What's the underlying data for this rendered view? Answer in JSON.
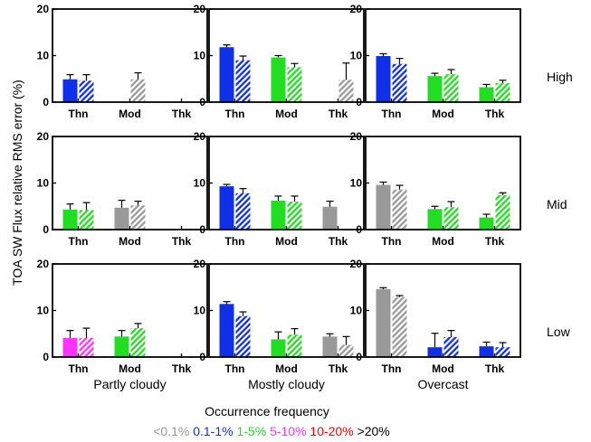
{
  "chart_data": {
    "type": "bar",
    "ylabel": "TOA SW Flux relative RMS error (%)",
    "ylim": [
      0,
      20
    ],
    "yticks": [
      0,
      10,
      20
    ],
    "categories": [
      "Thn",
      "Mod",
      "Thk"
    ],
    "row_labels": [
      "High",
      "Mid",
      "Low"
    ],
    "column_labels": [
      "Partly cloudy",
      "Mostly cloudy",
      "Overcast"
    ],
    "legend": {
      "title": "Occurrence frequency",
      "items": [
        {
          "label": "<0.1%",
          "color": "#999999"
        },
        {
          "label": "0.1-1%",
          "color": "#1030e8"
        },
        {
          "label": "1-5%",
          "color": "#22dd22"
        },
        {
          "label": "5-10%",
          "color": "#ff33ff"
        },
        {
          "label": "10-20%",
          "color": "#ff0000"
        },
        {
          "label": ">20%",
          "color": "#000000"
        }
      ]
    },
    "series_style": [
      "solid",
      "hatched"
    ],
    "panels": [
      {
        "row": "High",
        "column": "Partly cloudy",
        "bars": [
          {
            "category": "Thn",
            "values": [
              4.9,
              4.6
            ],
            "errors": [
              1.0,
              1.3
            ],
            "color": "#1030e8"
          },
          {
            "category": "Mod",
            "values": [
              0,
              4.9
            ],
            "errors": [
              0,
              1.4
            ],
            "color": "#999999"
          },
          {
            "category": "Thk",
            "values": [
              0,
              0
            ],
            "errors": [
              0,
              0
            ],
            "color": "#999999"
          }
        ]
      },
      {
        "row": "High",
        "column": "Mostly cloudy",
        "bars": [
          {
            "category": "Thn",
            "values": [
              11.8,
              9.0
            ],
            "errors": [
              0.5,
              0.9
            ],
            "color": "#1030e8"
          },
          {
            "category": "Mod",
            "values": [
              9.6,
              7.5
            ],
            "errors": [
              0.4,
              0.8
            ],
            "color": "#22dd22"
          },
          {
            "category": "Thk",
            "values": [
              0,
              4.8
            ],
            "errors": [
              0,
              3.6
            ],
            "color": "#999999"
          }
        ]
      },
      {
        "row": "High",
        "column": "Overcast",
        "bars": [
          {
            "category": "Thn",
            "values": [
              9.9,
              8.2
            ],
            "errors": [
              0.5,
              1.2
            ],
            "color": "#1030e8"
          },
          {
            "category": "Mod",
            "values": [
              5.6,
              6.0
            ],
            "errors": [
              0.6,
              1.0
            ],
            "color": "#22dd22"
          },
          {
            "category": "Thk",
            "values": [
              3.2,
              4.1
            ],
            "errors": [
              0.6,
              0.6
            ],
            "color": "#22dd22"
          }
        ]
      },
      {
        "row": "Mid",
        "column": "Partly cloudy",
        "bars": [
          {
            "category": "Thn",
            "values": [
              4.3,
              4.2
            ],
            "errors": [
              1.2,
              1.6
            ],
            "color": "#22dd22"
          },
          {
            "category": "Mod",
            "values": [
              4.7,
              5.2
            ],
            "errors": [
              1.6,
              0.9
            ],
            "color": "#999999"
          },
          {
            "category": "Thk",
            "values": [
              0,
              0
            ],
            "errors": [
              0,
              0
            ],
            "color": "#999999"
          }
        ]
      },
      {
        "row": "Mid",
        "column": "Mostly cloudy",
        "bars": [
          {
            "category": "Thn",
            "values": [
              9.3,
              7.8
            ],
            "errors": [
              0.4,
              1.0
            ],
            "color": "#1030e8"
          },
          {
            "category": "Mod",
            "values": [
              6.2,
              6.0
            ],
            "errors": [
              1.0,
              1.2
            ],
            "color": "#22dd22"
          },
          {
            "category": "Thk",
            "values": [
              4.9,
              0
            ],
            "errors": [
              1.2,
              0
            ],
            "color": "#999999"
          }
        ]
      },
      {
        "row": "Mid",
        "column": "Overcast",
        "bars": [
          {
            "category": "Thn",
            "values": [
              9.6,
              8.6
            ],
            "errors": [
              0.6,
              0.9
            ],
            "color": "#999999"
          },
          {
            "category": "Mod",
            "values": [
              4.4,
              4.8
            ],
            "errors": [
              0.6,
              1.2
            ],
            "color": "#22dd22"
          },
          {
            "category": "Thk",
            "values": [
              2.6,
              7.4
            ],
            "errors": [
              0.7,
              0.5
            ],
            "color": "#22dd22"
          }
        ]
      },
      {
        "row": "Low",
        "column": "Partly cloudy",
        "bars": [
          {
            "category": "Thn",
            "values": [
              4.1,
              4.1
            ],
            "errors": [
              1.6,
              2.1
            ],
            "color": "#ff33ff"
          },
          {
            "category": "Mod",
            "values": [
              4.4,
              6.2
            ],
            "errors": [
              1.3,
              1.0
            ],
            "color": "#22dd22"
          },
          {
            "category": "Thk",
            "values": [
              0,
              0
            ],
            "errors": [
              0,
              0
            ],
            "color": "#999999"
          }
        ]
      },
      {
        "row": "Low",
        "column": "Mostly cloudy",
        "bars": [
          {
            "category": "Thn",
            "values": [
              11.4,
              8.8
            ],
            "errors": [
              0.5,
              0.9
            ],
            "color": "#1030e8"
          },
          {
            "category": "Mod",
            "values": [
              3.8,
              4.8
            ],
            "errors": [
              1.6,
              1.3
            ],
            "color": "#22dd22"
          },
          {
            "category": "Thk",
            "values": [
              4.4,
              2.6
            ],
            "errors": [
              0.6,
              1.8
            ],
            "color": "#999999"
          }
        ]
      },
      {
        "row": "Low",
        "column": "Overcast",
        "bars": [
          {
            "category": "Thn",
            "values": [
              14.6,
              12.9
            ],
            "errors": [
              0.3,
              0.3
            ],
            "color": "#999999"
          },
          {
            "category": "Mod",
            "values": [
              2.1,
              4.3
            ],
            "errors": [
              3.0,
              1.4
            ],
            "color": "#1030e8"
          },
          {
            "category": "Thk",
            "values": [
              2.3,
              2.1
            ],
            "errors": [
              0.9,
              1.0
            ],
            "color": "#1030e8"
          }
        ]
      }
    ]
  }
}
